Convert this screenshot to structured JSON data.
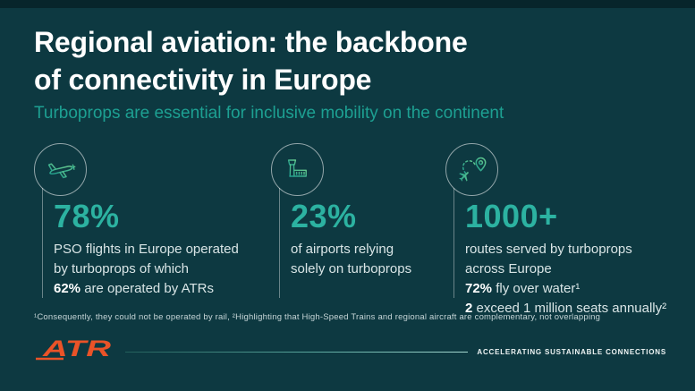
{
  "header": {
    "title_lines": [
      "Regional aviation: the backbone",
      "of connectivity in Europe"
    ],
    "subtitle": "Turboprops are essential for inclusive mobility on the continent"
  },
  "stats": [
    {
      "icon": "turboprop-airplane-icon",
      "value": "78%",
      "description_lines": [
        [
          {
            "text": "PSO flights in Europe operated",
            "bold": false
          }
        ],
        [
          {
            "text": "by turboprops of which",
            "bold": false
          }
        ],
        [
          {
            "text": "62%",
            "bold": true
          },
          {
            "text": " are operated by ATRs",
            "bold": false
          }
        ]
      ]
    },
    {
      "icon": "airport-control-tower-icon",
      "value": "23%",
      "description_lines": [
        [
          {
            "text": "of airports relying",
            "bold": false
          }
        ],
        [
          {
            "text": "solely on turboprops",
            "bold": false
          }
        ]
      ]
    },
    {
      "icon": "flight-route-pin-icon",
      "value": "1000+",
      "description_lines": [
        [
          {
            "text": "routes served by turboprops",
            "bold": false
          }
        ],
        [
          {
            "text": "across Europe",
            "bold": false
          }
        ],
        [
          {
            "text": "72%",
            "bold": true
          },
          {
            "text": " fly over water¹",
            "bold": false
          }
        ],
        [
          {
            "text": "2",
            "bold": true
          },
          {
            "text": " exceed 1 million seats annually²",
            "bold": false
          }
        ]
      ]
    }
  ],
  "footnote": "¹Consequently, they could not be operated by rail, ²Highlighting that High-Speed Trains and regional aircraft are complementary, not overlapping",
  "footer": {
    "logo_text": "ATR",
    "tagline": "ACCELERATING SUSTAINABLE CONNECTIONS"
  },
  "colors": {
    "background": "#0d3941",
    "teal_accent": "#1da092",
    "stat_teal": "#2cb2a1",
    "body_text": "#d9e5e6",
    "logo_orange": "#ea5328",
    "icon_gradient_start": "#1f9d8d",
    "icon_gradient_end": "#66ca8e"
  }
}
